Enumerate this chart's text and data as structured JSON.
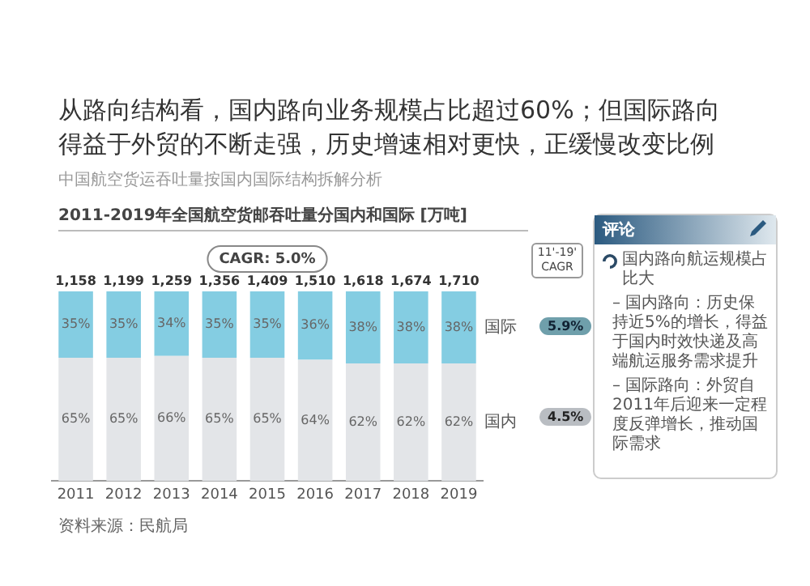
{
  "chart_data": {
    "type": "bar",
    "stacked": true,
    "title": "从路向结构看，国内路向业务规模占比超过60%；但国际路向得益于外贸的不断走强，历史增速相对更快，正缓慢改变比例",
    "subtitle": "中国航空货运吞吐量按国内国际结构拆解分析",
    "categories": [
      "2011",
      "2012",
      "2013",
      "2014",
      "2015",
      "2016",
      "2017",
      "2018",
      "2019"
    ],
    "series": [
      {
        "name": "国内",
        "color": "#e3e5e8",
        "values": [
          65,
          65,
          66,
          65,
          65,
          64,
          62,
          62,
          62
        ],
        "value_labels": [
          "65%",
          "65%",
          "66%",
          "65%",
          "65%",
          "64%",
          "62%",
          "62%",
          "62%"
        ]
      },
      {
        "name": "国际",
        "color": "#84cde2",
        "values": [
          35,
          35,
          34,
          35,
          35,
          36,
          38,
          38,
          38
        ],
        "value_labels": [
          "35%",
          "35%",
          "34%",
          "35%",
          "35%",
          "36%",
          "38%",
          "38%",
          "38%"
        ]
      }
    ],
    "legend": false,
    "grid": false,
    "annotations": [
      "CAGR: 5.0%",
      "11'-19' CAGR",
      "4.5%",
      "5.9%",
      "评论",
      "国内路向航运规模占比大",
      "– 国内路向：历史保持近5%的增长，得益于国内时效快递及高端航运服务需求提升",
      "– 国际路向：外贸自2011年后迎来一定程度反弹增长，推动国际需求",
      "资料来源：民航局",
      "2011-2019年全国航空货邮吞吐量分国内和国际 [万吨]",
      "1,158",
      "1,199",
      "1,259",
      "1,356",
      "1,409",
      "1,510",
      "1,618",
      "1,674",
      "1,710"
    ]
  }
}
